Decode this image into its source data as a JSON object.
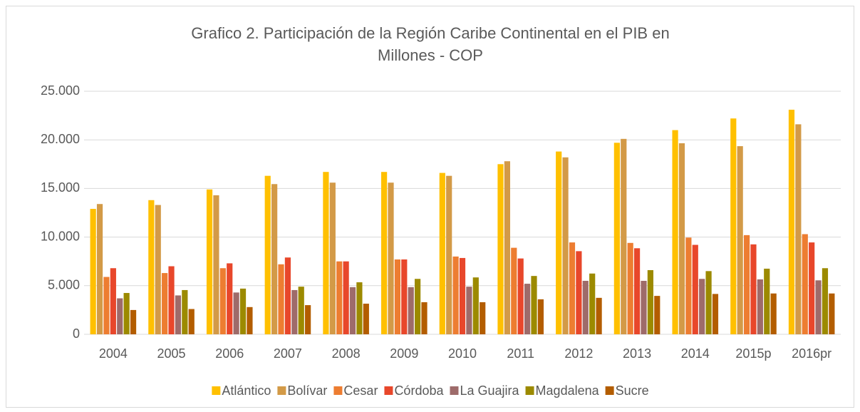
{
  "chart_data": {
    "type": "bar",
    "title": [
      "Grafico 2. Participación de la Región Caribe  Continental en el PIB en",
      "Millones - COP"
    ],
    "categories": [
      "2004",
      "2005",
      "2006",
      "2007",
      "2008",
      "2009",
      "2010",
      "2011",
      "2012",
      "2013",
      "2014",
      "2015p",
      "2016pr"
    ],
    "series": [
      {
        "name": "Atlántico",
        "color": "#FFC000",
        "values": [
          12900,
          13800,
          14900,
          16300,
          16700,
          16700,
          16600,
          17500,
          18800,
          19700,
          21000,
          22200,
          23100
        ]
      },
      {
        "name": "Bolívar",
        "color": "#D39A47",
        "values": [
          13400,
          13300,
          14300,
          15450,
          15600,
          15600,
          16300,
          17800,
          18200,
          20100,
          19650,
          19350,
          21600
        ]
      },
      {
        "name": "Cesar",
        "color": "#ED7D31",
        "values": [
          5900,
          6300,
          6800,
          7200,
          7500,
          7700,
          8000,
          8900,
          9450,
          9400,
          9950,
          10200,
          10300
        ]
      },
      {
        "name": "Córdoba",
        "color": "#E8472B",
        "values": [
          6800,
          7000,
          7300,
          7900,
          7500,
          7700,
          7850,
          7800,
          8550,
          8850,
          9200,
          9250,
          9450
        ]
      },
      {
        "name": "La Guajira",
        "color": "#9E6B6A",
        "values": [
          3700,
          4000,
          4300,
          4550,
          4850,
          4850,
          4900,
          5200,
          5500,
          5500,
          5700,
          5650,
          5550
        ]
      },
      {
        "name": "Magdalena",
        "color": "#9C8A00",
        "values": [
          4250,
          4550,
          4700,
          4900,
          5350,
          5700,
          5850,
          6000,
          6250,
          6600,
          6500,
          6750,
          6800
        ]
      },
      {
        "name": "Sucre",
        "color": "#B35D00",
        "values": [
          2500,
          2600,
          2800,
          3000,
          3150,
          3300,
          3300,
          3600,
          3750,
          3950,
          4150,
          4200,
          4200
        ]
      }
    ],
    "ylim": [
      0,
      25000
    ],
    "yticks": [
      0,
      {
        "value": 5000,
        "label": "5.000"
      },
      {
        "value": 10000,
        "label": "10.000"
      },
      {
        "value": 15000,
        "label": "15.000"
      },
      {
        "value": 20000,
        "label": "20.000"
      },
      {
        "value": 25000,
        "label": "25.000"
      }
    ],
    "grid": true,
    "legend": "bottom"
  }
}
